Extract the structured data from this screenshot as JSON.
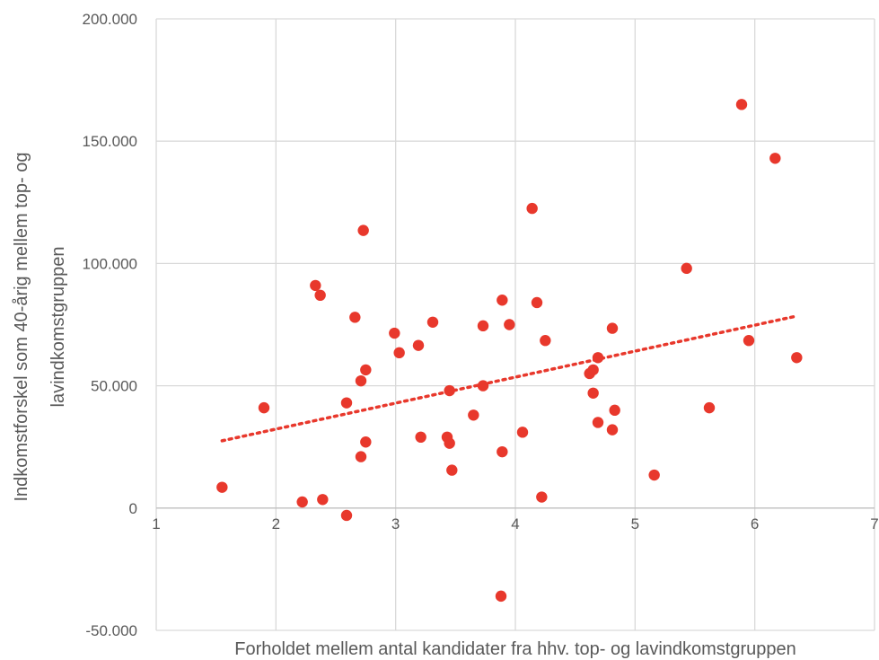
{
  "chart_data": {
    "type": "scatter",
    "xlabel": "Forholdet mellem antal kandidater fra hhv. top- og lavindkomstgruppen",
    "ylabel": [
      "Indkomstforskel som 40-årig mellem top- og",
      "lavindkomstgruppen"
    ],
    "xlim": [
      1,
      7
    ],
    "ylim": [
      -50000,
      200000
    ],
    "x_ticks": [
      1,
      2,
      3,
      4,
      5,
      6,
      7
    ],
    "x_tick_labels": [
      "1",
      "2",
      "3",
      "4",
      "5",
      "6",
      "7"
    ],
    "y_ticks": [
      -50000,
      0,
      50000,
      100000,
      150000,
      200000
    ],
    "y_tick_labels": [
      "-50.000",
      "0",
      "50.000",
      "100.000",
      "150.000",
      "200.000"
    ],
    "grid": true,
    "legend": "none",
    "point_color": "#e8382c",
    "trendline": {
      "type": "linear",
      "x_start": 1.55,
      "y_start": 27500,
      "x_end": 6.35,
      "y_end": 78500
    },
    "points": [
      {
        "x": 1.55,
        "y": 8500
      },
      {
        "x": 1.9,
        "y": 41000
      },
      {
        "x": 2.22,
        "y": 2500
      },
      {
        "x": 2.33,
        "y": 91000
      },
      {
        "x": 2.37,
        "y": 87000
      },
      {
        "x": 2.39,
        "y": 3500
      },
      {
        "x": 2.59,
        "y": 43000
      },
      {
        "x": 2.59,
        "y": -3000
      },
      {
        "x": 2.66,
        "y": 78000
      },
      {
        "x": 2.71,
        "y": 52000
      },
      {
        "x": 2.71,
        "y": 21000
      },
      {
        "x": 2.73,
        "y": 113500
      },
      {
        "x": 2.75,
        "y": 56500
      },
      {
        "x": 2.75,
        "y": 27000
      },
      {
        "x": 2.99,
        "y": 71500
      },
      {
        "x": 3.03,
        "y": 63500
      },
      {
        "x": 3.19,
        "y": 66500
      },
      {
        "x": 3.21,
        "y": 29000
      },
      {
        "x": 3.31,
        "y": 76000
      },
      {
        "x": 3.43,
        "y": 29000
      },
      {
        "x": 3.45,
        "y": 48000
      },
      {
        "x": 3.45,
        "y": 26500
      },
      {
        "x": 3.47,
        "y": 15500
      },
      {
        "x": 3.65,
        "y": 38000
      },
      {
        "x": 3.73,
        "y": 74500
      },
      {
        "x": 3.73,
        "y": 50000
      },
      {
        "x": 3.88,
        "y": -36000
      },
      {
        "x": 3.89,
        "y": 85000
      },
      {
        "x": 3.89,
        "y": 23000
      },
      {
        "x": 3.95,
        "y": 75000
      },
      {
        "x": 4.06,
        "y": 31000
      },
      {
        "x": 4.14,
        "y": 122500
      },
      {
        "x": 4.18,
        "y": 84000
      },
      {
        "x": 4.22,
        "y": 4500
      },
      {
        "x": 4.25,
        "y": 68500
      },
      {
        "x": 4.62,
        "y": 55000
      },
      {
        "x": 4.65,
        "y": 56500
      },
      {
        "x": 4.65,
        "y": 47000
      },
      {
        "x": 4.69,
        "y": 61500
      },
      {
        "x": 4.69,
        "y": 35000
      },
      {
        "x": 4.81,
        "y": 73500
      },
      {
        "x": 4.81,
        "y": 32000
      },
      {
        "x": 4.83,
        "y": 40000
      },
      {
        "x": 5.16,
        "y": 13500
      },
      {
        "x": 5.43,
        "y": 98000
      },
      {
        "x": 5.62,
        "y": 41000
      },
      {
        "x": 5.89,
        "y": 165000
      },
      {
        "x": 5.95,
        "y": 68500
      },
      {
        "x": 6.17,
        "y": 143000
      },
      {
        "x": 6.35,
        "y": 61500
      }
    ]
  }
}
